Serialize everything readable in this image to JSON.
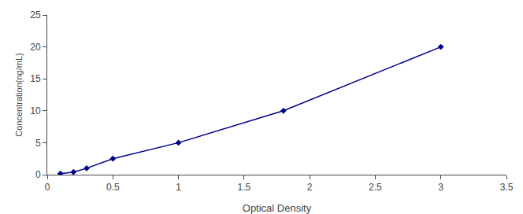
{
  "chart_data": {
    "type": "line",
    "x": [
      0.1,
      0.2,
      0.3,
      0.5,
      1.0,
      1.8,
      3.0
    ],
    "values": [
      0.16,
      0.4,
      1.0,
      2.5,
      5.0,
      10.0,
      20.0
    ],
    "color": "#00008B",
    "marker": "diamond",
    "line_style": "solid",
    "xlabel": "Optical Density",
    "ylabel": "Concentration(ng/mL)",
    "xlim": [
      0,
      3.5
    ],
    "ylim": [
      0,
      25
    ],
    "xticks": [
      0,
      0.5,
      1,
      1.5,
      2,
      2.5,
      3,
      3.5
    ],
    "yticks": [
      0,
      5,
      10,
      15,
      20,
      25
    ],
    "grid": false
  }
}
